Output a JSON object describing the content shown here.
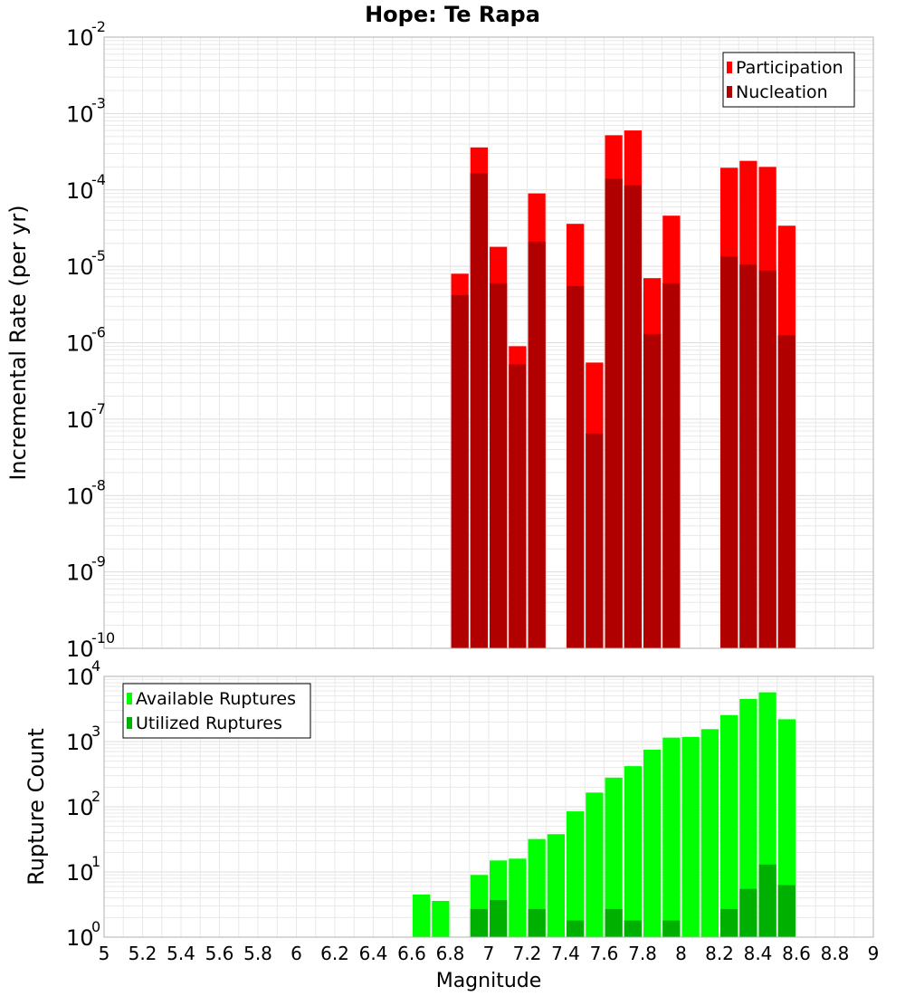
{
  "title": "Hope: Te Rapa",
  "xlabel": "Magnitude",
  "colors": {
    "participation": "#ff0000",
    "nucleation": "#b00000",
    "available": "#00ff00",
    "utilized": "#00b000",
    "grid": "#e8e8e8",
    "axis_border": "#b0b0b0"
  },
  "chart_data": [
    {
      "type": "bar",
      "scale": "log",
      "ylabel": "Incremental Rate (per yr)",
      "ylim_exp": [
        -10,
        -2
      ],
      "y_tick_exponents": [
        "-10",
        "-9",
        "-8",
        "-7",
        "-6",
        "-5",
        "-4",
        "-3",
        "-2"
      ],
      "xlim": [
        5,
        9
      ],
      "bin_width": 0.1,
      "legend_position": "top-right",
      "series": [
        {
          "name": "Participation",
          "color_key": "participation",
          "points": [
            {
              "x": 6.85,
              "y": 8e-06
            },
            {
              "x": 6.95,
              "y": 0.00036
            },
            {
              "x": 7.05,
              "y": 1.8e-05
            },
            {
              "x": 7.15,
              "y": 9e-07
            },
            {
              "x": 7.25,
              "y": 9e-05
            },
            {
              "x": 7.45,
              "y": 3.6e-05
            },
            {
              "x": 7.55,
              "y": 5.5e-07
            },
            {
              "x": 7.65,
              "y": 0.00052
            },
            {
              "x": 7.75,
              "y": 0.0006
            },
            {
              "x": 7.85,
              "y": 7e-06
            },
            {
              "x": 7.95,
              "y": 4.6e-05
            },
            {
              "x": 8.25,
              "y": 0.000195
            },
            {
              "x": 8.35,
              "y": 0.00024
            },
            {
              "x": 8.45,
              "y": 0.0002
            },
            {
              "x": 8.55,
              "y": 3.4e-05
            }
          ]
        },
        {
          "name": "Nucleation",
          "color_key": "nucleation",
          "points": [
            {
              "x": 6.85,
              "y": 4.2e-06
            },
            {
              "x": 6.95,
              "y": 0.000165
            },
            {
              "x": 7.05,
              "y": 6e-06
            },
            {
              "x": 7.15,
              "y": 5.2e-07
            },
            {
              "x": 7.25,
              "y": 2.1e-05
            },
            {
              "x": 7.45,
              "y": 5.5e-06
            },
            {
              "x": 7.55,
              "y": 6.5e-08
            },
            {
              "x": 7.65,
              "y": 0.00014
            },
            {
              "x": 7.75,
              "y": 0.000115
            },
            {
              "x": 7.85,
              "y": 1.3e-06
            },
            {
              "x": 7.95,
              "y": 6e-06
            },
            {
              "x": 8.25,
              "y": 1.35e-05
            },
            {
              "x": 8.35,
              "y": 1.05e-05
            },
            {
              "x": 8.45,
              "y": 8.8e-06
            },
            {
              "x": 8.55,
              "y": 1.25e-06
            }
          ]
        }
      ]
    },
    {
      "type": "bar",
      "scale": "log",
      "ylabel": "Rupture Count",
      "ylim_exp": [
        0,
        4
      ],
      "y_tick_exponents": [
        "0",
        "1",
        "2",
        "3",
        "4"
      ],
      "xlim": [
        5,
        9
      ],
      "bin_width": 0.1,
      "x_ticks": [
        "5",
        "5.2",
        "5.4",
        "5.6",
        "5.8",
        "6",
        "6.2",
        "6.4",
        "6.6",
        "6.8",
        "7",
        "7.2",
        "7.4",
        "7.6",
        "7.8",
        "8",
        "8.2",
        "8.4",
        "8.6",
        "8.8",
        "9"
      ],
      "legend_position": "top-left",
      "series": [
        {
          "name": "Available Ruptures",
          "color_key": "available",
          "points": [
            {
              "x": 6.65,
              "y": 4.5
            },
            {
              "x": 6.75,
              "y": 3.6
            },
            {
              "x": 6.85,
              "y": 1
            },
            {
              "x": 6.95,
              "y": 9
            },
            {
              "x": 7.05,
              "y": 15
            },
            {
              "x": 7.15,
              "y": 16
            },
            {
              "x": 7.25,
              "y": 32
            },
            {
              "x": 7.35,
              "y": 38
            },
            {
              "x": 7.45,
              "y": 85
            },
            {
              "x": 7.55,
              "y": 165
            },
            {
              "x": 7.65,
              "y": 280
            },
            {
              "x": 7.75,
              "y": 420
            },
            {
              "x": 7.85,
              "y": 750
            },
            {
              "x": 7.95,
              "y": 1150
            },
            {
              "x": 8.05,
              "y": 1180
            },
            {
              "x": 8.15,
              "y": 1550
            },
            {
              "x": 8.25,
              "y": 2550
            },
            {
              "x": 8.35,
              "y": 4500
            },
            {
              "x": 8.45,
              "y": 5700
            },
            {
              "x": 8.55,
              "y": 2200
            }
          ]
        },
        {
          "name": "Utilized Ruptures",
          "color_key": "utilized",
          "points": [
            {
              "x": 6.95,
              "y": 2.7
            },
            {
              "x": 7.05,
              "y": 3.7
            },
            {
              "x": 7.15,
              "y": 1
            },
            {
              "x": 7.25,
              "y": 2.7
            },
            {
              "x": 7.45,
              "y": 1.8
            },
            {
              "x": 7.55,
              "y": 1
            },
            {
              "x": 7.65,
              "y": 2.7
            },
            {
              "x": 7.75,
              "y": 1.8
            },
            {
              "x": 7.85,
              "y": 1
            },
            {
              "x": 7.95,
              "y": 1.8
            },
            {
              "x": 8.05,
              "y": 1
            },
            {
              "x": 8.25,
              "y": 2.7
            },
            {
              "x": 8.35,
              "y": 5.5
            },
            {
              "x": 8.45,
              "y": 13
            },
            {
              "x": 8.55,
              "y": 6.3
            }
          ]
        }
      ]
    }
  ]
}
